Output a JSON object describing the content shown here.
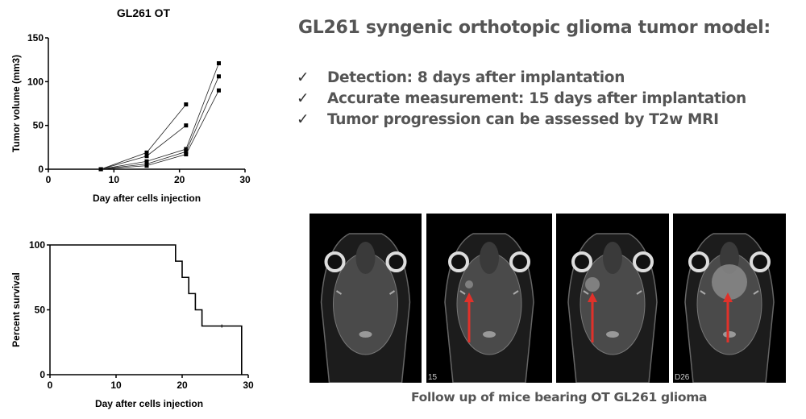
{
  "heading": "GL261 syngenic orthotopic glioma tumor model:",
  "bullets": [
    {
      "icon": "check-icon",
      "mark": "✓",
      "text": "Detection: 8 days after implantation"
    },
    {
      "icon": "check-icon",
      "mark": "✓",
      "text": "Accurate measurement: 15 days after implantation"
    },
    {
      "icon": "check-icon",
      "mark": "✓",
      "text": "Tumor progression can be assessed by T2w MRI"
    }
  ],
  "caption": "Follow up of mice bearing OT GL261 glioma",
  "mri_images": [
    {
      "label": "",
      "arrow": false,
      "tumor": 0
    },
    {
      "label": "15",
      "arrow": true,
      "tumor": 1
    },
    {
      "label": "",
      "arrow": true,
      "tumor": 2
    },
    {
      "label": "D26",
      "arrow": true,
      "tumor": 3
    }
  ],
  "arrow_color": "#e0312a",
  "chart_data": [
    {
      "type": "line",
      "title": "GL261 OT",
      "xlabel": "Day after cells injection",
      "ylabel": "Tumor volume (mm3)",
      "xlim": [
        0,
        30
      ],
      "ylim": [
        0,
        150
      ],
      "xticks": [
        "0",
        "10",
        "20",
        "30"
      ],
      "yticks": [
        "0",
        "50",
        "100",
        "150"
      ],
      "marker": "square",
      "series": [
        {
          "x": [
            8,
            15,
            21
          ],
          "y": [
            0,
            19,
            74
          ]
        },
        {
          "x": [
            8,
            15,
            21
          ],
          "y": [
            0,
            15,
            50
          ]
        },
        {
          "x": [
            8,
            15,
            21,
            26
          ],
          "y": [
            0,
            9,
            23,
            121
          ]
        },
        {
          "x": [
            8,
            15,
            21,
            26
          ],
          "y": [
            0,
            6,
            20,
            106
          ]
        },
        {
          "x": [
            8,
            15,
            21,
            26
          ],
          "y": [
            0,
            4,
            17,
            90
          ]
        }
      ]
    },
    {
      "type": "line",
      "subtype": "kaplan-meier step",
      "title": "",
      "xlabel": "Day after cells injection",
      "ylabel": "Percent survival",
      "xlim": [
        0,
        30
      ],
      "ylim": [
        0,
        100
      ],
      "xticks": [
        "0",
        "10",
        "20",
        "30"
      ],
      "yticks": [
        "0",
        "50",
        "100"
      ],
      "x": [
        0,
        19,
        20,
        21,
        22,
        23,
        29
      ],
      "y": [
        100,
        87.5,
        75,
        62.5,
        50,
        37.5,
        0
      ],
      "censored": [
        {
          "x": 26,
          "y": 37.5
        }
      ]
    }
  ]
}
